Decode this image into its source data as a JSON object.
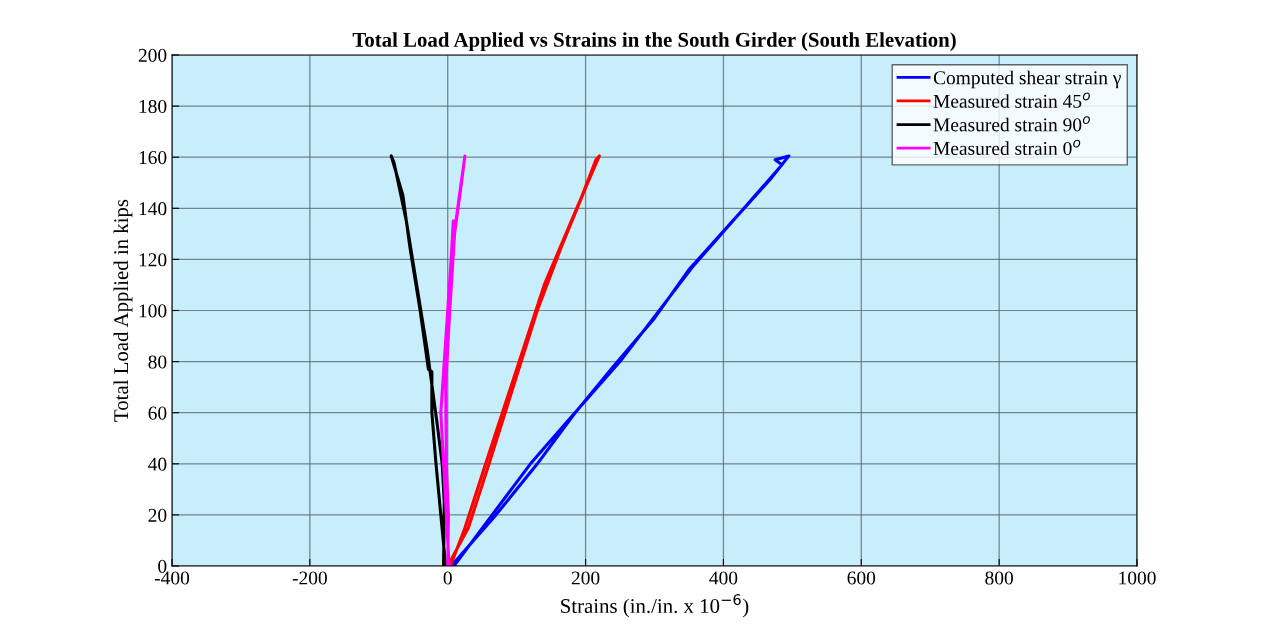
{
  "chart_data": {
    "type": "line",
    "title": "Total Load Applied vs Strains in the South Girder (South Elevation)",
    "xlabel": "Strains (in./in. x 10$^{−6}$)",
    "ylabel": "Total Load Applied in kips",
    "xlim": [
      -400,
      1000
    ],
    "xticks": [
      -400,
      -200,
      0,
      200,
      400,
      600,
      800,
      1000
    ],
    "ylim": [
      0,
      200
    ],
    "yticks": [
      0,
      20,
      40,
      60,
      80,
      100,
      120,
      140,
      160,
      180,
      200
    ],
    "grid": true,
    "legend": "top right",
    "marker": "none",
    "line_style": "solid",
    "series": [
      {
        "name": "Computed shear strain γ",
        "color": "#0000ff",
        "x": [
          5,
          70,
          130,
          185,
          240,
          300,
          350,
          410,
          470,
          495,
          475,
          485,
          420,
          355,
          250,
          175,
          120,
          9
        ],
        "values": [
          0,
          20,
          40,
          60,
          78,
          97,
          116,
          134,
          152,
          160.5,
          159,
          157,
          137,
          117,
          80,
          57,
          40,
          0
        ]
      },
      {
        "name": "Measured strain 45$^{o}$",
        "color": "#ff0000",
        "x": [
          0,
          30,
          60,
          95,
          130,
          165,
          200,
          220,
          215,
          195,
          140,
          100,
          55,
          25,
          4
        ],
        "values": [
          0,
          15,
          40,
          70,
          100,
          125,
          148,
          160.5,
          159,
          145,
          110,
          77,
          40,
          15,
          0
        ]
      },
      {
        "name": "Measured strain 90$^{o}$",
        "color": "#000000",
        "x": [
          -3,
          -10,
          -17,
          -23,
          -23,
          -28,
          -40,
          -55,
          -65,
          -82,
          -78,
          -60,
          -45,
          -30,
          -15,
          -8,
          -5,
          -6
        ],
        "values": [
          0,
          20,
          40,
          60,
          76,
          77,
          100,
          125,
          145,
          160.5,
          158,
          135,
          110,
          85,
          55,
          40,
          25,
          0
        ]
      },
      {
        "name": "Measured strain 0$^{o}$",
        "color": "#ff00ff",
        "x": [
          2,
          -2,
          -6,
          -10,
          -5,
          0,
          5,
          8,
          12,
          17,
          25,
          20,
          10,
          3,
          -3,
          -2,
          1,
          0
        ],
        "values": [
          0,
          20,
          40,
          60,
          80,
          100,
          120,
          135,
          135,
          145,
          160.5,
          150,
          130,
          100,
          70,
          40,
          20,
          0
        ]
      }
    ]
  }
}
